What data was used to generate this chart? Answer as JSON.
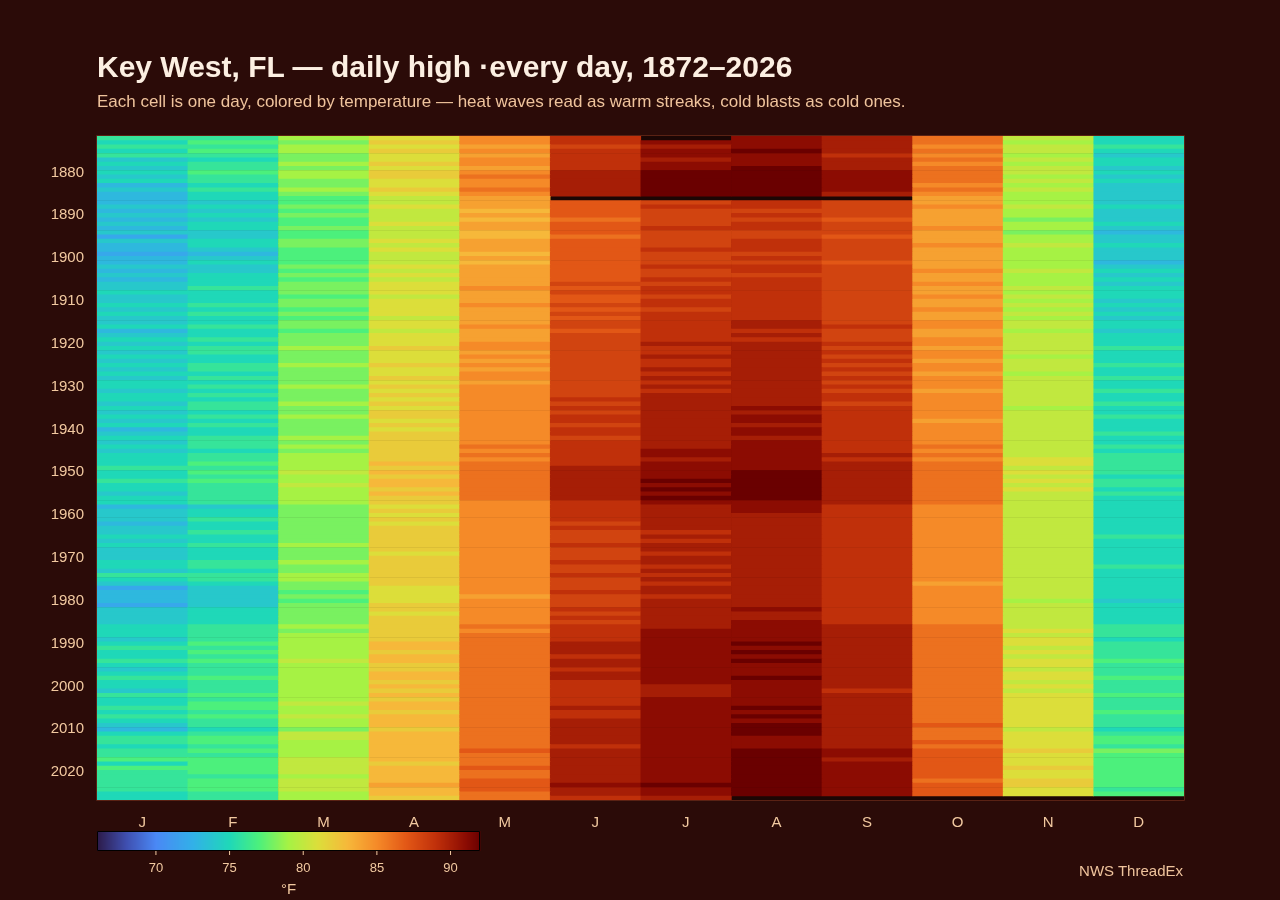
{
  "chart_data": {
    "type": "heatmap",
    "title": "Key West, FL — daily high ·every day, 1872–2026",
    "subtitle": "Each cell is one day, colored by temperature — heat waves read as warm streaks, cold blasts as cold ones.",
    "categories": [
      "J",
      "F",
      "M",
      "A",
      "M",
      "J",
      "J",
      "A",
      "S",
      "O",
      "N",
      "D"
    ],
    "y_categories": [
      null,
      null,
      null,
      null,
      null,
      null,
      null,
      null,
      "1880",
      null,
      null,
      null,
      null,
      null,
      null,
      null,
      null,
      null,
      "1890",
      null,
      null,
      null,
      null,
      null,
      null,
      null,
      null,
      null,
      "1900",
      null,
      null,
      null,
      null,
      null,
      null,
      null,
      null,
      null,
      "1910",
      null,
      null,
      null,
      null,
      null,
      null,
      null,
      null,
      null,
      "1920",
      null,
      null,
      null,
      null,
      null,
      null,
      null,
      null,
      null,
      "1930",
      null,
      null,
      null,
      null,
      null,
      null,
      null,
      null,
      null,
      "1940",
      null,
      null,
      null,
      null,
      null,
      null,
      null,
      null,
      null,
      "1950",
      null,
      null,
      null,
      null,
      null,
      null,
      null,
      null,
      null,
      "1960",
      null,
      null,
      null,
      null,
      null,
      null,
      null,
      null,
      null,
      "1970",
      null,
      null,
      null,
      null,
      null,
      null,
      null,
      null,
      null,
      "1980",
      null,
      null,
      null,
      null,
      null,
      null,
      null,
      null,
      null,
      "1990",
      null,
      null,
      null,
      null,
      null,
      null,
      null,
      null,
      null,
      "2000",
      null,
      null,
      null,
      null,
      null,
      null,
      null,
      null,
      null,
      "2010",
      null,
      null,
      null,
      null,
      null,
      null,
      null,
      null,
      null,
      "2020",
      null,
      null,
      null,
      null,
      null,
      null
    ],
    "cells": [
      [
        76,
        76,
        79,
        81,
        85,
        89,
        null,
        91,
        90,
        86,
        80,
        75
      ],
      [
        75,
        77,
        78,
        82,
        85,
        89,
        91,
        91,
        90,
        86,
        79,
        75
      ],
      [
        76,
        76,
        79,
        81,
        84,
        88,
        90,
        91,
        90,
        85,
        80,
        76
      ],
      [
        75,
        77,
        79,
        82,
        85,
        89,
        91,
        92,
        90,
        86,
        80,
        75
      ],
      [
        76,
        76,
        78,
        81,
        84,
        89,
        91,
        91,
        89,
        85,
        79,
        74
      ],
      [
        74,
        75,
        78,
        81,
        85,
        89,
        90,
        91,
        90,
        86,
        80,
        75
      ],
      [
        75,
        76,
        79,
        82,
        85,
        89,
        91,
        91,
        90,
        85,
        79,
        75
      ],
      [
        74,
        76,
        78,
        81,
        84,
        89,
        91,
        92,
        90,
        86,
        80,
        74
      ],
      [
        75,
        77,
        79,
        82,
        85,
        90,
        92,
        92,
        91,
        86,
        80,
        75
      ],
      [
        74,
        76,
        79,
        82,
        86,
        90,
        92,
        92,
        91,
        86,
        79,
        74
      ],
      [
        75,
        76,
        78,
        81,
        85,
        90,
        92,
        92,
        91,
        86,
        80,
        75
      ],
      [
        73,
        75,
        78,
        81,
        85,
        90,
        92,
        92,
        91,
        85,
        79,
        74
      ],
      [
        74,
        76,
        79,
        82,
        86,
        90,
        92,
        92,
        91,
        86,
        80,
        74
      ],
      [
        73,
        75,
        78,
        81,
        85,
        90,
        92,
        92,
        90,
        85,
        79,
        74
      ],
      [
        73,
        75,
        77,
        80,
        84,
        null,
        null,
        null,
        null,
        84,
        79,
        74
      ],
      [
        73,
        74,
        77,
        80,
        84,
        87,
        88,
        89,
        88,
        84,
        79,
        74
      ],
      [
        74,
        75,
        78,
        81,
        84,
        87,
        89,
        89,
        88,
        85,
        80,
        75
      ],
      [
        73,
        74,
        77,
        80,
        83,
        87,
        88,
        88,
        88,
        84,
        79,
        74
      ],
      [
        74,
        75,
        78,
        80,
        84,
        87,
        88,
        89,
        88,
        84,
        79,
        74
      ],
      [
        73,
        74,
        77,
        80,
        83,
        86,
        88,
        88,
        87,
        84,
        78,
        74
      ],
      [
        74,
        75,
        77,
        81,
        84,
        87,
        88,
        89,
        88,
        84,
        79,
        75
      ],
      [
        73,
        75,
        78,
        80,
        84,
        87,
        89,
        89,
        88,
        85,
        79,
        74
      ],
      [
        74,
        74,
        77,
        80,
        83,
        87,
        88,
        88,
        88,
        84,
        78,
        73
      ],
      [
        72,
        74,
        77,
        80,
        83,
        86,
        88,
        88,
        87,
        84,
        79,
        74
      ],
      [
        74,
        75,
        78,
        81,
        84,
        87,
        88,
        89,
        88,
        84,
        79,
        74
      ],
      [
        73,
        75,
        78,
        80,
        84,
        87,
        88,
        89,
        88,
        85,
        80,
        75
      ],
      [
        73,
        74,
        77,
        81,
        84,
        87,
        89,
        89,
        88,
        84,
        79,
        74
      ],
      [
        72,
        73,
        77,
        80,
        83,
        87,
        88,
        88,
        88,
        84,
        79,
        74
      ],
      [
        73,
        74,
        77,
        80,
        84,
        87,
        88,
        89,
        88,
        84,
        79,
        74
      ],
      [
        73,
        75,
        77,
        80,
        83,
        87,
        88,
        88,
        87,
        84,
        79,
        73
      ],
      [
        74,
        74,
        78,
        81,
        84,
        87,
        89,
        89,
        88,
        84,
        79,
        74
      ],
      [
        73,
        74,
        77,
        80,
        84,
        87,
        88,
        89,
        88,
        85,
        80,
        75
      ],
      [
        74,
        75,
        78,
        81,
        84,
        87,
        88,
        88,
        88,
        84,
        79,
        74
      ],
      [
        73,
        75,
        77,
        80,
        84,
        87,
        89,
        89,
        88,
        84,
        79,
        75
      ],
      [
        74,
        75,
        78,
        81,
        84,
        88,
        88,
        89,
        88,
        85,
        79,
        74
      ],
      [
        74,
        76,
        78,
        81,
        85,
        87,
        89,
        89,
        88,
        84,
        80,
        75
      ],
      [
        75,
        75,
        78,
        81,
        84,
        88,
        89,
        89,
        88,
        84,
        79,
        75
      ],
      [
        74,
        75,
        77,
        80,
        84,
        87,
        88,
        89,
        88,
        85,
        80,
        75
      ],
      [
        74,
        75,
        78,
        81,
        84,
        87,
        89,
        89,
        88,
        84,
        79,
        74
      ],
      [
        75,
        76,
        78,
        81,
        85,
        88,
        89,
        89,
        88,
        84,
        80,
        75
      ],
      [
        74,
        75,
        77,
        81,
        84,
        87,
        88,
        89,
        88,
        85,
        79,
        74
      ],
      [
        75,
        76,
        78,
        81,
        84,
        88,
        89,
        89,
        88,
        84,
        80,
        75
      ],
      [
        74,
        75,
        77,
        80,
        84,
        87,
        89,
        89,
        88,
        84,
        79,
        74
      ],
      [
        74,
        75,
        78,
        81,
        84,
        88,
        89,
        90,
        88,
        85,
        80,
        75
      ],
      [
        75,
        76,
        78,
        81,
        85,
        88,
        89,
        90,
        89,
        85,
        80,
        75
      ],
      [
        73,
        75,
        77,
        80,
        84,
        87,
        89,
        89,
        88,
        84,
        79,
        74
      ],
      [
        74,
        75,
        78,
        81,
        84,
        88,
        89,
        90,
        88,
        84,
        80,
        75
      ],
      [
        75,
        76,
        78,
        81,
        84,
        88,
        89,
        89,
        88,
        85,
        80,
        75
      ],
      [
        74,
        75,
        78,
        81,
        85,
        88,
        90,
        90,
        89,
        85,
        80,
        75
      ],
      [
        75,
        76,
        79,
        82,
        85,
        88,
        89,
        90,
        88,
        84,
        80,
        76
      ],
      [
        74,
        76,
        78,
        81,
        84,
        88,
        89,
        90,
        89,
        85,
        80,
        75
      ],
      [
        75,
        75,
        78,
        81,
        85,
        88,
        90,
        90,
        88,
        85,
        79,
        75
      ],
      [
        74,
        75,
        78,
        81,
        84,
        88,
        89,
        90,
        89,
        84,
        80,
        75
      ],
      [
        75,
        76,
        79,
        82,
        85,
        88,
        89,
        90,
        88,
        85,
        80,
        76
      ],
      [
        74,
        76,
        78,
        81,
        84,
        88,
        90,
        90,
        89,
        85,
        80,
        75
      ],
      [
        75,
        75,
        78,
        81,
        85,
        88,
        89,
        90,
        88,
        84,
        79,
        75
      ],
      [
        74,
        76,
        78,
        82,
        85,
        88,
        90,
        90,
        89,
        85,
        80,
        76
      ],
      [
        75,
        75,
        78,
        81,
        84,
        88,
        89,
        90,
        88,
        85,
        80,
        75
      ],
      [
        75,
        76,
        79,
        82,
        85,
        88,
        90,
        90,
        89,
        85,
        80,
        75
      ],
      [
        74,
        75,
        78,
        81,
        85,
        88,
        89,
        90,
        88,
        84,
        80,
        76
      ],
      [
        75,
        76,
        78,
        82,
        85,
        88,
        90,
        90,
        89,
        85,
        80,
        75
      ],
      [
        75,
        75,
        78,
        81,
        85,
        89,
        90,
        90,
        89,
        85,
        80,
        75
      ],
      [
        74,
        76,
        79,
        82,
        85,
        88,
        90,
        90,
        88,
        85,
        80,
        76
      ],
      [
        75,
        76,
        78,
        81,
        85,
        89,
        90,
        91,
        89,
        85,
        79,
        75
      ],
      [
        74,
        75,
        78,
        82,
        85,
        88,
        90,
        90,
        89,
        85,
        80,
        75
      ],
      [
        75,
        76,
        79,
        82,
        85,
        89,
        90,
        91,
        89,
        85,
        80,
        76
      ],
      [
        74,
        75,
        78,
        81,
        85,
        89,
        90,
        91,
        89,
        84,
        80,
        75
      ],
      [
        75,
        76,
        78,
        82,
        85,
        88,
        90,
        90,
        89,
        85,
        80,
        75
      ],
      [
        73,
        75,
        78,
        81,
        85,
        89,
        90,
        91,
        89,
        85,
        80,
        75
      ],
      [
        74,
        75,
        78,
        82,
        85,
        89,
        90,
        91,
        89,
        85,
        80,
        76
      ],
      [
        75,
        76,
        79,
        82,
        85,
        88,
        90,
        90,
        89,
        85,
        80,
        75
      ],
      [
        74,
        76,
        78,
        82,
        85,
        89,
        90,
        91,
        89,
        85,
        80,
        75
      ],
      [
        75,
        76,
        79,
        82,
        86,
        89,
        90,
        91,
        89,
        86,
        80,
        76
      ],
      [
        74,
        75,
        78,
        82,
        85,
        89,
        91,
        91,
        89,
        85,
        80,
        75
      ],
      [
        75,
        76,
        79,
        82,
        86,
        89,
        91,
        91,
        90,
        86,
        80,
        76
      ],
      [
        75,
        76,
        79,
        82,
        85,
        89,
        90,
        91,
        89,
        85,
        81,
        76
      ],
      [
        75,
        77,
        79,
        83,
        86,
        89,
        91,
        91,
        90,
        86,
        81,
        76
      ],
      [
        76,
        76,
        79,
        82,
        86,
        90,
        91,
        91,
        90,
        86,
        80,
        76
      ],
      [
        75,
        77,
        80,
        83,
        86,
        90,
        91,
        92,
        90,
        86,
        81,
        76
      ],
      [
        75,
        76,
        79,
        82,
        86,
        90,
        91,
        92,
        90,
        86,
        80,
        75
      ],
      [
        76,
        77,
        79,
        83,
        86,
        90,
        92,
        92,
        90,
        86,
        81,
        76
      ],
      [
        75,
        76,
        80,
        83,
        86,
        90,
        91,
        92,
        90,
        86,
        80,
        76
      ],
      [
        75,
        76,
        79,
        82,
        86,
        90,
        92,
        92,
        90,
        86,
        81,
        75
      ],
      [
        74,
        76,
        79,
        83,
        86,
        90,
        91,
        92,
        90,
        86,
        80,
        76
      ],
      [
        75,
        76,
        79,
        82,
        86,
        90,
        92,
        92,
        90,
        86,
        80,
        75
      ],
      [
        75,
        76,
        79,
        82,
        85,
        89,
        91,
        91,
        90,
        86,
        80,
        75
      ],
      [
        73,
        74,
        78,
        81,
        85,
        89,
        90,
        91,
        89,
        85,
        80,
        75
      ],
      [
        74,
        75,
        78,
        82,
        85,
        89,
        90,
        91,
        89,
        85,
        80,
        75
      ],
      [
        74,
        75,
        78,
        81,
        85,
        89,
        90,
        90,
        89,
        85,
        80,
        75
      ],
      [
        74,
        76,
        78,
        82,
        85,
        89,
        90,
        90,
        89,
        85,
        80,
        75
      ],
      [
        73,
        75,
        78,
        81,
        85,
        88,
        90,
        90,
        89,
        85,
        80,
        75
      ],
      [
        74,
        75,
        78,
        82,
        85,
        89,
        90,
        90,
        89,
        85,
        80,
        75
      ],
      [
        74,
        76,
        78,
        82,
        85,
        88,
        89,
        90,
        89,
        85,
        80,
        75
      ],
      [
        75,
        75,
        78,
        82,
        85,
        88,
        90,
        90,
        89,
        85,
        80,
        76
      ],
      [
        74,
        75,
        78,
        82,
        85,
        88,
        89,
        90,
        89,
        85,
        80,
        75
      ],
      [
        75,
        76,
        79,
        82,
        85,
        89,
        90,
        90,
        89,
        85,
        80,
        75
      ],
      [
        74,
        75,
        78,
        82,
        85,
        88,
        90,
        90,
        89,
        85,
        80,
        75
      ],
      [
        74,
        75,
        78,
        81,
        85,
        88,
        89,
        90,
        89,
        85,
        80,
        75
      ],
      [
        74,
        75,
        78,
        82,
        85,
        88,
        90,
        90,
        89,
        85,
        80,
        75
      ],
      [
        75,
        76,
        79,
        82,
        85,
        89,
        90,
        90,
        89,
        85,
        80,
        75
      ],
      [
        75,
        76,
        78,
        82,
        85,
        88,
        89,
        90,
        89,
        85,
        80,
        76
      ],
      [
        74,
        75,
        78,
        82,
        85,
        88,
        90,
        90,
        89,
        85,
        80,
        75
      ],
      [
        76,
        76,
        79,
        82,
        85,
        89,
        89,
        90,
        89,
        85,
        80,
        75
      ],
      [
        75,
        76,
        79,
        82,
        85,
        88,
        90,
        90,
        89,
        85,
        80,
        75
      ],
      [
        74,
        75,
        78,
        82,
        85,
        88,
        89,
        90,
        89,
        84,
        80,
        75
      ],
      [
        72,
        74,
        78,
        81,
        85,
        88,
        90,
        90,
        89,
        85,
        80,
        75
      ],
      [
        73,
        74,
        77,
        81,
        85,
        89,
        90,
        90,
        89,
        85,
        80,
        75
      ],
      [
        73,
        74,
        78,
        81,
        84,
        88,
        89,
        90,
        89,
        85,
        80,
        75
      ],
      [
        73,
        74,
        77,
        81,
        85,
        88,
        90,
        90,
        89,
        85,
        79,
        74
      ],
      [
        72,
        74,
        78,
        82,
        85,
        88,
        90,
        90,
        89,
        85,
        80,
        75
      ],
      [
        74,
        75,
        78,
        82,
        85,
        89,
        90,
        91,
        89,
        85,
        80,
        75
      ],
      [
        74,
        75,
        78,
        81,
        85,
        88,
        90,
        90,
        89,
        85,
        80,
        75
      ],
      [
        74,
        75,
        78,
        82,
        85,
        89,
        90,
        90,
        89,
        85,
        80,
        75
      ],
      [
        74,
        75,
        78,
        82,
        85,
        88,
        90,
        91,
        89,
        85,
        80,
        75
      ],
      [
        75,
        76,
        79,
        82,
        86,
        89,
        90,
        91,
        90,
        86,
        80,
        76
      ],
      [
        75,
        76,
        78,
        82,
        85,
        89,
        91,
        91,
        90,
        86,
        81,
        76
      ],
      [
        75,
        76,
        79,
        82,
        86,
        89,
        91,
        91,
        90,
        86,
        80,
        76
      ],
      [
        74,
        76,
        79,
        82,
        86,
        89,
        91,
        91,
        90,
        86,
        81,
        75
      ],
      [
        75,
        77,
        79,
        83,
        86,
        90,
        91,
        92,
        90,
        86,
        81,
        76
      ],
      [
        76,
        76,
        79,
        83,
        86,
        90,
        91,
        91,
        90,
        86,
        80,
        76
      ],
      [
        75,
        77,
        79,
        82,
        86,
        90,
        91,
        92,
        90,
        86,
        81,
        76
      ],
      [
        75,
        76,
        79,
        83,
        86,
        89,
        91,
        91,
        90,
        86,
        80,
        76
      ],
      [
        76,
        77,
        80,
        83,
        86,
        90,
        91,
        92,
        90,
        86,
        81,
        77
      ],
      [
        75,
        76,
        79,
        82,
        86,
        90,
        91,
        91,
        90,
        86,
        81,
        76
      ],
      [
        74,
        76,
        79,
        82,
        86,
        89,
        91,
        91,
        90,
        86,
        80,
        76
      ],
      [
        75,
        76,
        79,
        83,
        86,
        90,
        91,
        91,
        90,
        86,
        81,
        76
      ],
      [
        76,
        77,
        79,
        83,
        86,
        90,
        91,
        92,
        90,
        86,
        81,
        77
      ],
      [
        75,
        76,
        79,
        82,
        86,
        89,
        91,
        91,
        90,
        86,
        80,
        76
      ],
      [
        75,
        76,
        79,
        83,
        86,
        89,
        90,
        91,
        90,
        86,
        81,
        76
      ],
      [
        74,
        76,
        79,
        82,
        86,
        89,
        90,
        91,
        89,
        86,
        80,
        76
      ],
      [
        76,
        77,
        79,
        83,
        86,
        89,
        90,
        91,
        90,
        86,
        81,
        77
      ],
      [
        75,
        76,
        79,
        82,
        86,
        89,
        91,
        91,
        90,
        86,
        81,
        76
      ],
      [
        75,
        77,
        80,
        83,
        86,
        89,
        91,
        91,
        90,
        86,
        81,
        76
      ],
      [
        76,
        77,
        79,
        83,
        86,
        90,
        91,
        92,
        90,
        86,
        81,
        76
      ],
      [
        75,
        76,
        79,
        82,
        86,
        89,
        91,
        91,
        90,
        86,
        81,
        77
      ],
      [
        76,
        77,
        80,
        83,
        86,
        89,
        91,
        92,
        90,
        86,
        81,
        76
      ],
      [
        75,
        76,
        79,
        83,
        86,
        90,
        91,
        91,
        90,
        86,
        81,
        76
      ],
      [
        74,
        76,
        79,
        83,
        86,
        90,
        91,
        92,
        90,
        87,
        81,
        76
      ],
      [
        73,
        75,
        78,
        82,
        86,
        90,
        91,
        92,
        90,
        86,
        80,
        75
      ],
      [
        75,
        76,
        80,
        83,
        86,
        90,
        91,
        92,
        90,
        86,
        81,
        76
      ],
      [
        76,
        77,
        80,
        83,
        86,
        90,
        91,
        91,
        90,
        86,
        81,
        77
      ],
      [
        76,
        77,
        79,
        83,
        86,
        90,
        91,
        91,
        90,
        87,
        81,
        77
      ],
      [
        75,
        76,
        79,
        83,
        86,
        89,
        91,
        91,
        90,
        86,
        81,
        76
      ],
      [
        76,
        77,
        79,
        83,
        87,
        90,
        91,
        92,
        91,
        87,
        82,
        78
      ],
      [
        76,
        76,
        79,
        83,
        86,
        90,
        91,
        92,
        91,
        87,
        81,
        77
      ],
      [
        77,
        77,
        80,
        83,
        86,
        90,
        91,
        92,
        90,
        87,
        81,
        77
      ],
      [
        75,
        77,
        80,
        82,
        86,
        90,
        91,
        92,
        91,
        87,
        81,
        77
      ],
      [
        77,
        77,
        80,
        83,
        87,
        90,
        91,
        92,
        91,
        87,
        82,
        77
      ],
      [
        76,
        77,
        80,
        83,
        86,
        90,
        91,
        92,
        91,
        87,
        81,
        77
      ],
      [
        76,
        76,
        79,
        83,
        86,
        90,
        91,
        92,
        91,
        87,
        81,
        77
      ],
      [
        76,
        77,
        80,
        83,
        87,
        90,
        91,
        92,
        91,
        86,
        82,
        77
      ],
      [
        76,
        77,
        80,
        84,
        87,
        91,
        92,
        92,
        91,
        87,
        82,
        77
      ],
      [
        76,
        77,
        80,
        83,
        87,
        90,
        91,
        92,
        91,
        87,
        81,
        76
      ],
      [
        75,
        76,
        79,
        83,
        86,
        90,
        91,
        92,
        91,
        87,
        81,
        77
      ],
      [
        75,
        76,
        79,
        82,
        86,
        89,
        90,
        null,
        null,
        null,
        null,
        null
      ]
    ],
    "clim": [
      66,
      92
    ],
    "cticks": [
      70,
      75,
      80,
      85,
      90
    ],
    "clabel": "°F",
    "annotations": [
      "NWS ThreadEx"
    ]
  }
}
